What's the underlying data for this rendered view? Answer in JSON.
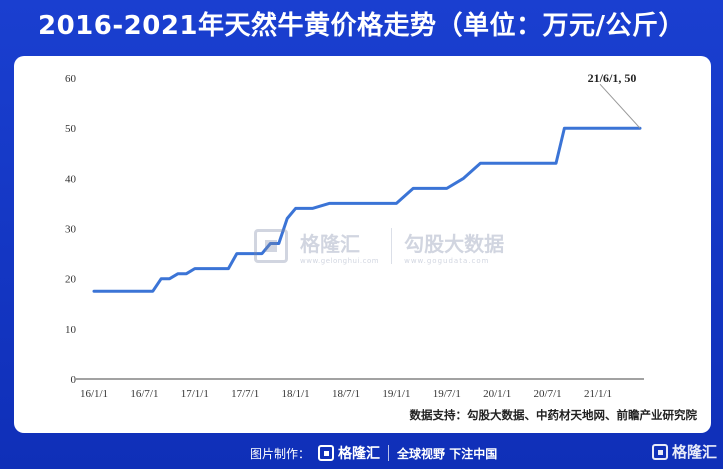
{
  "header": {
    "title": "2016-2021年天然牛黄价格走势（单位：万元/公斤）"
  },
  "chart_data": {
    "type": "line",
    "title": "2016-2021年天然牛黄价格走势（单位：万元/公斤）",
    "xlabel": "",
    "ylabel": "",
    "ylim": [
      0,
      60
    ],
    "yticks": [
      0,
      10,
      20,
      30,
      40,
      50,
      60
    ],
    "x_tick_labels": [
      "16/1/1",
      "16/7/1",
      "17/1/1",
      "17/7/1",
      "18/1/1",
      "18/7/1",
      "19/1/1",
      "19/7/1",
      "20/1/1",
      "20/7/1",
      "21/1/1"
    ],
    "grid": false,
    "line_color": "#3b74d6",
    "series": [
      {
        "points": [
          {
            "x": "16/1/1",
            "y": 17.5
          },
          {
            "x": "16/7/1",
            "y": 17.5
          },
          {
            "x": "16/8/1",
            "y": 17.5
          },
          {
            "x": "16/9/1",
            "y": 20
          },
          {
            "x": "16/10/1",
            "y": 20
          },
          {
            "x": "16/11/1",
            "y": 21
          },
          {
            "x": "16/12/1",
            "y": 21
          },
          {
            "x": "17/1/1",
            "y": 22
          },
          {
            "x": "17/3/1",
            "y": 22
          },
          {
            "x": "17/5/1",
            "y": 22
          },
          {
            "x": "17/6/1",
            "y": 25
          },
          {
            "x": "17/7/1",
            "y": 25
          },
          {
            "x": "17/9/1",
            "y": 25
          },
          {
            "x": "17/10/1",
            "y": 27
          },
          {
            "x": "17/11/1",
            "y": 27
          },
          {
            "x": "17/12/1",
            "y": 32
          },
          {
            "x": "18/1/1",
            "y": 34
          },
          {
            "x": "18/3/1",
            "y": 34
          },
          {
            "x": "18/5/1",
            "y": 35
          },
          {
            "x": "18/7/1",
            "y": 35
          },
          {
            "x": "19/1/1",
            "y": 35
          },
          {
            "x": "19/3/1",
            "y": 38
          },
          {
            "x": "19/7/1",
            "y": 38
          },
          {
            "x": "19/9/1",
            "y": 40
          },
          {
            "x": "19/11/1",
            "y": 43
          },
          {
            "x": "20/1/1",
            "y": 43
          },
          {
            "x": "20/7/1",
            "y": 43
          },
          {
            "x": "20/8/1",
            "y": 43
          },
          {
            "x": "20/9/1",
            "y": 50
          },
          {
            "x": "21/1/1",
            "y": 50
          },
          {
            "x": "21/6/1",
            "y": 50
          }
        ]
      }
    ],
    "annotation": {
      "text": "21/6/1, 50",
      "x": "21/6/1",
      "y": 50
    },
    "source": "数据支持：勾股大数据、中药材天地网、前瞻产业研究院"
  },
  "watermark": {
    "brand": "格隆汇",
    "brand_url": "www.gelonghui.com",
    "partner": "勾股大数据",
    "partner_url": "www.gogudata.com"
  },
  "footer": {
    "made_by": "图片制作：",
    "logo_text": "格隆汇",
    "slogan": "全球视野 下注中国",
    "corner_logo": "格隆汇"
  }
}
